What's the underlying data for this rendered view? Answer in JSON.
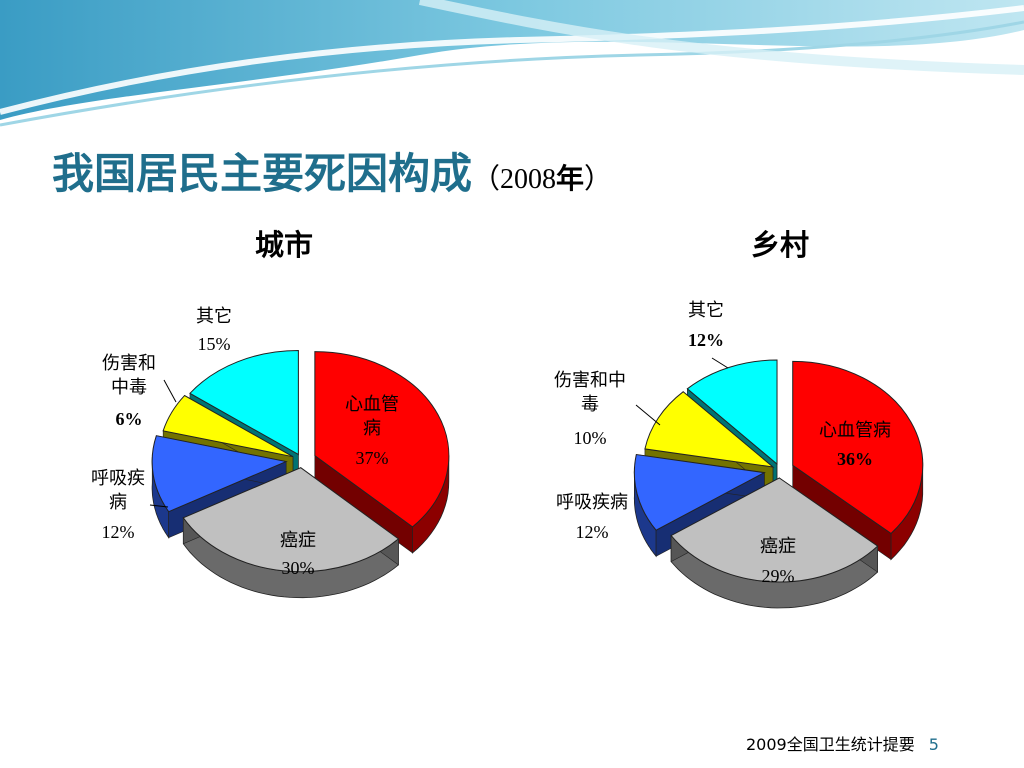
{
  "slide": {
    "title": "我国居民主要死因构成",
    "year_open": "（2008",
    "year_unit": "年",
    "year_close": "）",
    "footer_source": "2009全国卫生统计提要",
    "page_number": "5"
  },
  "chart_data": [
    {
      "type": "pie",
      "title": "城市",
      "slices": [
        {
          "label": "心血管病",
          "value": 37,
          "value_label": "37%",
          "color": "#ff0000"
        },
        {
          "label": "癌症",
          "value": 30,
          "value_label": "30%",
          "color": "#c0c0c0"
        },
        {
          "label": "呼吸疾病",
          "value": 12,
          "value_label": "12%",
          "color": "#3366ff"
        },
        {
          "label": "伤害和中毒",
          "value": 6,
          "value_label": "6%",
          "color": "#ffff00"
        },
        {
          "label": "其它",
          "value": 15,
          "value_label": "15%",
          "color": "#00ffff"
        }
      ]
    },
    {
      "type": "pie",
      "title": "乡村",
      "slices": [
        {
          "label": "心血管病",
          "value": 36,
          "value_label": "36%",
          "color": "#ff0000"
        },
        {
          "label": "癌症",
          "value": 29,
          "value_label": "29%",
          "color": "#c0c0c0"
        },
        {
          "label": "呼吸疾病",
          "value": 12,
          "value_label": "12%",
          "color": "#3366ff"
        },
        {
          "label": "伤害和中毒",
          "value": 10,
          "value_label": "10%",
          "color": "#ffff00"
        },
        {
          "label": "其它",
          "value": 12,
          "value_label": "12%",
          "color": "#00ffff"
        }
      ]
    }
  ]
}
